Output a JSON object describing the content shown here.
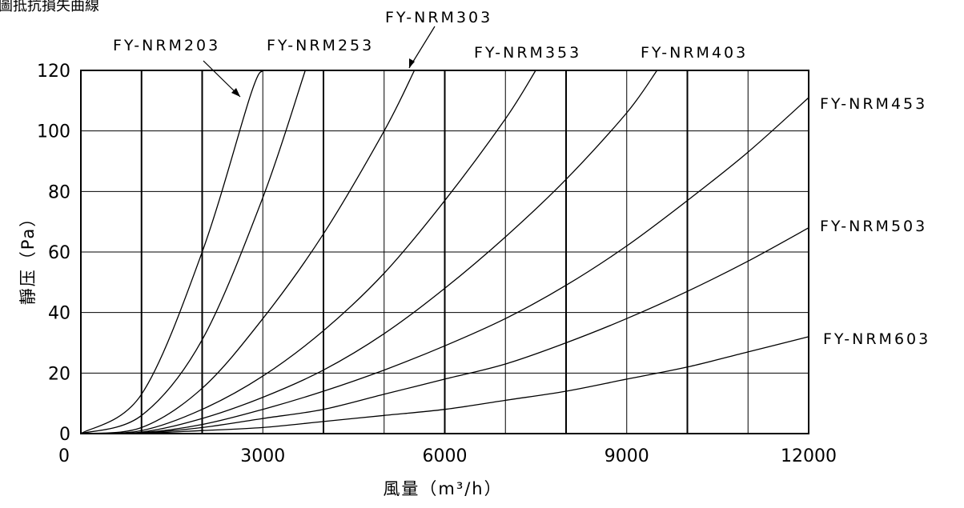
{
  "chart_data": {
    "type": "line",
    "title": "圖抵抗損失曲線",
    "xlabel": "風量（m³/h）",
    "ylabel": "靜压（Pa）",
    "xlim": [
      0,
      12000
    ],
    "ylim": [
      0,
      120
    ],
    "x_tick_labels": [
      "0",
      "3000",
      "6000",
      "9000",
      "12000"
    ],
    "x_tick_values": [
      0,
      3000,
      6000,
      9000,
      12000
    ],
    "y_tick_labels": [
      "0",
      "20",
      "40",
      "60",
      "80",
      "100",
      "120"
    ],
    "y_tick_values": [
      0,
      20,
      40,
      60,
      80,
      100,
      120
    ],
    "x_major_grid_every": 1000,
    "y_major_grid_every": 20,
    "grid": true,
    "series": [
      {
        "name": "FY-NRM203",
        "x": [
          0,
          1000,
          2000,
          2800,
          3000
        ],
        "y": [
          0,
          13,
          60,
          112,
          120
        ]
      },
      {
        "name": "FY-NRM253",
        "x": [
          0,
          1000,
          2000,
          3000,
          3700
        ],
        "y": [
          0,
          6,
          31,
          78,
          120
        ]
      },
      {
        "name": "FY-NRM303",
        "x": [
          0,
          1000,
          2000,
          3000,
          4000,
          5000,
          5500
        ],
        "y": [
          0,
          2,
          15,
          38,
          66,
          100,
          120
        ]
      },
      {
        "name": "FY-NRM353",
        "x": [
          0,
          1000,
          2000,
          3000,
          4000,
          5000,
          6000,
          7000,
          7500
        ],
        "y": [
          0,
          1,
          8,
          19,
          34,
          53,
          77,
          104,
          120
        ]
      },
      {
        "name": "FY-NRM403",
        "x": [
          0,
          1000,
          2000,
          3000,
          4000,
          5000,
          6000,
          7000,
          8000,
          9000,
          9500
        ],
        "y": [
          0,
          0.5,
          5,
          12,
          21,
          33,
          48,
          65,
          84,
          106,
          120
        ]
      },
      {
        "name": "FY-NRM453",
        "x": [
          0,
          1000,
          2000,
          3000,
          4000,
          5000,
          6000,
          7000,
          8000,
          9000,
          10000,
          11000,
          12000
        ],
        "y": [
          0,
          0.3,
          3,
          8,
          14,
          21,
          29,
          38,
          49,
          62,
          77,
          93,
          111
        ]
      },
      {
        "name": "FY-NRM503",
        "x": [
          0,
          1000,
          2000,
          3000,
          4000,
          5000,
          6000,
          7000,
          8000,
          9000,
          10000,
          11000,
          12000
        ],
        "y": [
          0,
          0.2,
          2,
          5,
          8,
          13,
          18,
          23,
          30,
          38,
          47,
          57,
          68
        ]
      },
      {
        "name": "FY-NRM603",
        "x": [
          0,
          1000,
          2000,
          3000,
          4000,
          5000,
          6000,
          7000,
          8000,
          9000,
          10000,
          11000,
          12000
        ],
        "y": [
          0,
          0.1,
          1,
          2,
          4,
          6,
          8,
          11,
          14,
          18,
          22,
          27,
          32
        ]
      }
    ]
  }
}
